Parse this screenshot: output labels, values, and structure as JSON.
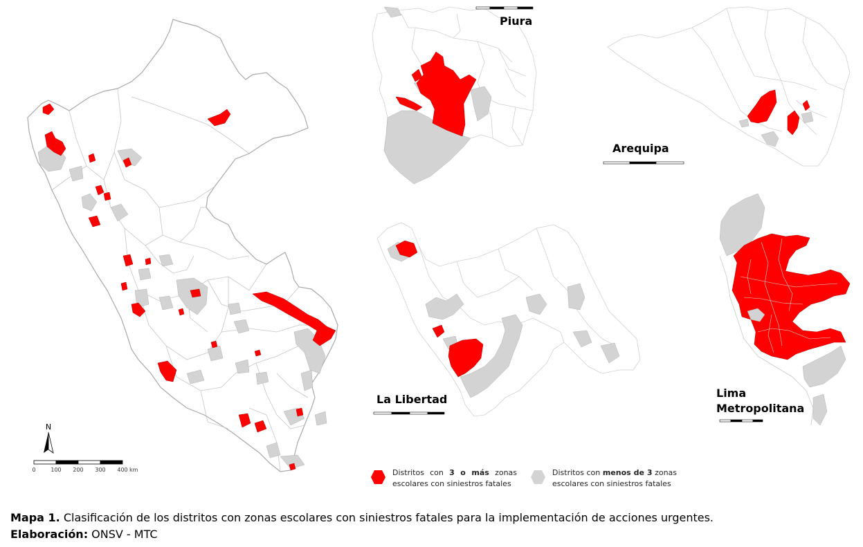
{
  "colors": {
    "high": "#ff0000",
    "low": "#d3d3d3",
    "border": "#a8a8a8",
    "background": "#ffffff"
  },
  "maps": {
    "piura": "Piura",
    "arequipa": "Arequipa",
    "la_libertad": "La Libertad",
    "lima_line1": "Lima",
    "lima_line2": "Metropolitana"
  },
  "north_arrow": "N",
  "scale_peru": {
    "ticks": [
      "0",
      "100",
      "200",
      "300",
      "400"
    ],
    "unit": "km"
  },
  "legend": {
    "high": {
      "prefix": "Distritos con",
      "bold": "3 o más",
      "suffix": "zonas escolares con siniestros fatales"
    },
    "low": {
      "prefix": "Distritos con",
      "bold": "menos de 3",
      "suffix": "zonas escolares con siniestros fatales"
    }
  },
  "caption": {
    "title_bold": "Mapa 1.",
    "title_text": " Clasificación de los distritos con zonas escolares con siniestros fatales para la implementación de acciones urgentes.",
    "credit_bold": "Elaboración:",
    "credit_text": " ONSV - MTC"
  }
}
